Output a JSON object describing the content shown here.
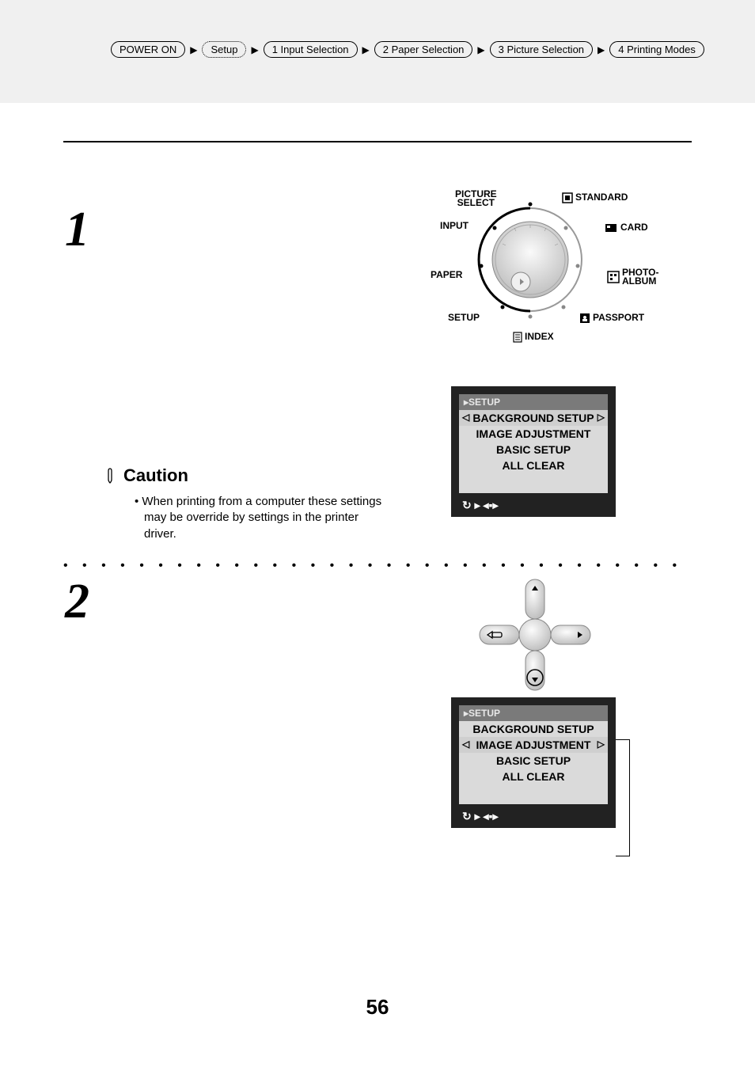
{
  "breadcrumb": {
    "items": [
      {
        "label": "POWER ON",
        "dotted": false
      },
      {
        "label": "Setup",
        "dotted": true
      },
      {
        "label": "1 Input Selection",
        "dotted": false
      },
      {
        "label": "2 Paper Selection",
        "dotted": false
      },
      {
        "label": "3 Picture Selection",
        "dotted": false
      },
      {
        "label": "4 Printing Modes",
        "dotted": false
      }
    ]
  },
  "steps": {
    "one": "1",
    "two": "2"
  },
  "caution": {
    "title": "Caution",
    "body": "• When printing from a computer these settings may be override by settings in the printer driver."
  },
  "dial": {
    "picture_select": "PICTURE\nSELECT",
    "standard": "STANDARD",
    "input": "INPUT",
    "card": "CARD",
    "paper": "PAPER",
    "photo_album": "PHOTO-\nALBUM",
    "setup": "SETUP",
    "passport": "PASSPORT",
    "index": "INDEX"
  },
  "lcd": {
    "title": "SETUP",
    "rows": [
      "BACKGROUND SETUP",
      "IMAGE ADJUSTMENT",
      "BASIC SETUP",
      "ALL CLEAR"
    ],
    "foot": "↻ ▸ ◂▪▸"
  },
  "lcd1": {
    "selected_index": 0
  },
  "lcd2": {
    "selected_index": 1
  },
  "page_number": "56",
  "colors": {
    "header_bg": "#f0f0f0",
    "lcd_bg": "#222222",
    "lcd_panel": "#dadada",
    "lcd_titlebar": "#7a7a7a"
  }
}
